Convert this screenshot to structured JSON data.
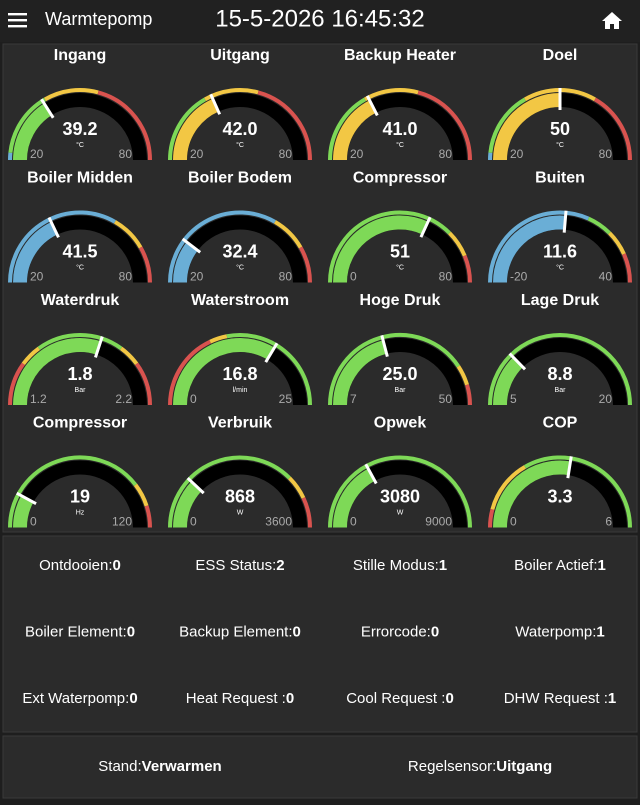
{
  "header": {
    "title": "Warmtepomp",
    "datetime": "15-5-2026 16:45:32"
  },
  "gauges": [
    {
      "title": "Ingang",
      "value": 39.2,
      "unit": "°C",
      "min": 20,
      "max": 80,
      "bands": [
        {
          "from": 20,
          "to": 22,
          "color": "#6aaed6"
        },
        {
          "from": 22,
          "to": 40,
          "color": "#7ed957"
        },
        {
          "from": 40,
          "to": 55,
          "color": "#f2c744"
        },
        {
          "from": 55,
          "to": 80,
          "color": "#d9534f"
        }
      ]
    },
    {
      "title": "Uitgang",
      "value": 42.0,
      "value_label": "42.0",
      "unit": "°C",
      "min": 20,
      "max": 80,
      "bands": [
        {
          "from": 20,
          "to": 40,
          "color": "#7ed957"
        },
        {
          "from": 40,
          "to": 55,
          "color": "#f2c744"
        },
        {
          "from": 55,
          "to": 80,
          "color": "#d9534f"
        }
      ]
    },
    {
      "title": "Backup Heater",
      "value": 41.0,
      "value_label": "41.0",
      "unit": "°C",
      "min": 20,
      "max": 80,
      "bands": [
        {
          "from": 20,
          "to": 40,
          "color": "#7ed957"
        },
        {
          "from": 40,
          "to": 55,
          "color": "#f2c744"
        },
        {
          "from": 55,
          "to": 80,
          "color": "#d9534f"
        }
      ]
    },
    {
      "title": "Doel",
      "value": 50,
      "unit": "°C",
      "min": 20,
      "max": 80,
      "bands": [
        {
          "from": 20,
          "to": 22,
          "color": "#6aaed6"
        },
        {
          "from": 22,
          "to": 40,
          "color": "#7ed957"
        },
        {
          "from": 40,
          "to": 60,
          "color": "#f2c744"
        },
        {
          "from": 60,
          "to": 80,
          "color": "#d9534f"
        }
      ]
    },
    {
      "title": "Boiler Midden",
      "value": 41.5,
      "unit": "°C",
      "min": 20,
      "max": 80,
      "bands": [
        {
          "from": 20,
          "to": 60,
          "color": "#6aaed6"
        },
        {
          "from": 60,
          "to": 70,
          "color": "#f2c744"
        },
        {
          "from": 70,
          "to": 80,
          "color": "#d9534f"
        }
      ]
    },
    {
      "title": "Boiler Bodem",
      "value": 32.4,
      "unit": "°C",
      "min": 20,
      "max": 80,
      "bands": [
        {
          "from": 20,
          "to": 60,
          "color": "#6aaed6"
        },
        {
          "from": 60,
          "to": 70,
          "color": "#f2c744"
        },
        {
          "from": 70,
          "to": 80,
          "color": "#d9534f"
        }
      ]
    },
    {
      "title": "Compressor",
      "value": 51,
      "unit": "°C",
      "min": 0,
      "max": 80,
      "bands": [
        {
          "from": 0,
          "to": 60,
          "color": "#7ed957"
        },
        {
          "from": 60,
          "to": 70,
          "color": "#f2c744"
        },
        {
          "from": 70,
          "to": 80,
          "color": "#d9534f"
        }
      ]
    },
    {
      "title": "Buiten",
      "value": 11.6,
      "unit": "°C",
      "min": -20,
      "max": 40,
      "bands": [
        {
          "from": -20,
          "to": 18,
          "color": "#6aaed6"
        },
        {
          "from": 18,
          "to": 25,
          "color": "#7ed957"
        },
        {
          "from": 25,
          "to": 32,
          "color": "#f2c744"
        },
        {
          "from": 32,
          "to": 40,
          "color": "#d9534f"
        }
      ]
    },
    {
      "title": "Waterdruk",
      "value": 1.8,
      "unit": "Bar",
      "min": 1.2,
      "max": 2.2,
      "bands": [
        {
          "from": 1.2,
          "to": 1.4,
          "color": "#d9534f"
        },
        {
          "from": 1.4,
          "to": 1.5,
          "color": "#f2c744"
        },
        {
          "from": 1.5,
          "to": 1.9,
          "color": "#7ed957"
        },
        {
          "from": 1.9,
          "to": 2.0,
          "color": "#f2c744"
        },
        {
          "from": 2.0,
          "to": 2.2,
          "color": "#d9534f"
        }
      ]
    },
    {
      "title": "Waterstroom",
      "value": 16.8,
      "unit": "l/min",
      "min": 0,
      "max": 25,
      "bands": [
        {
          "from": 0,
          "to": 9,
          "color": "#d9534f"
        },
        {
          "from": 9,
          "to": 11,
          "color": "#f2c744"
        },
        {
          "from": 11,
          "to": 25,
          "color": "#7ed957"
        }
      ]
    },
    {
      "title": "Hoge Druk",
      "value": 25.0,
      "value_label": "25.0",
      "unit": "Bar",
      "min": 7,
      "max": 50,
      "bands": [
        {
          "from": 7,
          "to": 42,
          "color": "#7ed957"
        },
        {
          "from": 42,
          "to": 46,
          "color": "#f2c744"
        },
        {
          "from": 46,
          "to": 50,
          "color": "#d9534f"
        }
      ]
    },
    {
      "title": "Lage Druk",
      "value": 8.8,
      "unit": "Bar",
      "min": 5,
      "max": 20,
      "bands": [
        {
          "from": 5,
          "to": 20,
          "color": "#7ed957"
        }
      ]
    },
    {
      "title": "Compressor",
      "value": 19,
      "unit": "Hz",
      "min": 0,
      "max": 120,
      "bands": [
        {
          "from": 0,
          "to": 95,
          "color": "#7ed957"
        },
        {
          "from": 95,
          "to": 108,
          "color": "#f2c744"
        },
        {
          "from": 108,
          "to": 120,
          "color": "#d9534f"
        }
      ]
    },
    {
      "title": "Verbruik",
      "value": 868,
      "unit": "W",
      "min": 0,
      "max": 3600,
      "bands": [
        {
          "from": 0,
          "to": 2700,
          "color": "#7ed957"
        },
        {
          "from": 2700,
          "to": 3100,
          "color": "#f2c744"
        },
        {
          "from": 3100,
          "to": 3600,
          "color": "#d9534f"
        }
      ]
    },
    {
      "title": "Opwek",
      "value": 3080,
      "unit": "W",
      "min": 0,
      "max": 9000,
      "bands": [
        {
          "from": 0,
          "to": 9000,
          "color": "#7ed957"
        }
      ]
    },
    {
      "title": "COP",
      "value": 3.3,
      "min": 0,
      "max": 6,
      "bands": [
        {
          "from": 0,
          "to": 0.5,
          "color": "#d9534f"
        },
        {
          "from": 0.5,
          "to": 2,
          "color": "#f2c744"
        },
        {
          "from": 2,
          "to": 6,
          "color": "#7ed957"
        }
      ]
    }
  ],
  "status": [
    {
      "label": "Ontdooien:",
      "value": 0
    },
    {
      "label": "ESS Status:",
      "value": 2
    },
    {
      "label": "Stille Modus:",
      "value": 1
    },
    {
      "label": "Boiler Actief:",
      "value": 1
    },
    {
      "label": "Boiler Element:",
      "value": 0
    },
    {
      "label": "Backup Element:",
      "value": 0
    },
    {
      "label": "Errorcode:",
      "value": 0
    },
    {
      "label": "Waterpomp:",
      "value": 1
    },
    {
      "label": "Ext Waterpomp:",
      "value": 0
    },
    {
      "label": "Heat Request :",
      "value": 0
    },
    {
      "label": "Cool Request :",
      "value": 0
    },
    {
      "label": "DHW Request :",
      "value": 1
    }
  ],
  "footer": [
    {
      "label": "Stand:",
      "value": "Verwarmen"
    },
    {
      "label": "Regelsensor:",
      "value": "Uitgang"
    }
  ]
}
